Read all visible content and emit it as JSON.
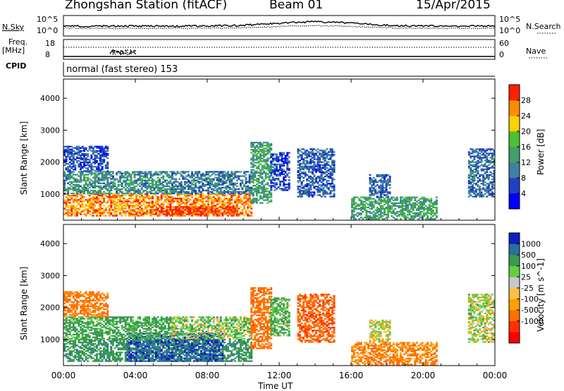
{
  "header": {
    "station": "Zhongshan Station (fitACF)",
    "beam": "Beam 01",
    "date": "15/Apr/2015"
  },
  "nsky_panel": {
    "left_label": "N.Sky",
    "right_label": "N.Search",
    "tick_top": "10^5",
    "tick_bottom": "10^0",
    "right_tick_top": "10^5",
    "right_tick_bottom": "10^0"
  },
  "freq_panel": {
    "left_label_line1": "Freq.",
    "left_label_line2": "[MHz]",
    "left_tick_top": "18",
    "left_tick_bottom": "8",
    "right_label": "Nave",
    "right_tick_top": "60",
    "right_tick_bottom": "0"
  },
  "cpid": {
    "label": "CPID",
    "text": "normal (fast stereo) 153"
  },
  "axes": {
    "ylabel": "Slant Range [km]",
    "xlabel": "Time UT",
    "yticks": [
      "4000",
      "3000",
      "2000",
      "1000"
    ],
    "xticks": [
      "00:00",
      "04:00",
      "08:00",
      "12:00",
      "16:00",
      "20:00",
      "00:00"
    ]
  },
  "chart_data": [
    {
      "type": "heatmap",
      "name": "power",
      "x": "time UT (hours, 0-24)",
      "y": "slant range (km)",
      "ylim": [
        180,
        4600
      ],
      "xlim": [
        0,
        24
      ],
      "colorbar": {
        "label": "Power [dB]",
        "ticks": [
          "28",
          "24",
          "20",
          "16",
          "12",
          "8",
          "4"
        ],
        "range": [
          0,
          32
        ],
        "colors": [
          "#0000ff",
          "#2040c0",
          "#3f7fa0",
          "#3fa06a",
          "#4cc030",
          "#ffd000",
          "#ff8c00",
          "#ff2000"
        ]
      },
      "regions": [
        {
          "t0": 0.0,
          "t1": 10.4,
          "r0": 300,
          "r1": 1000,
          "level": 26
        },
        {
          "t0": 4.8,
          "t1": 9.6,
          "r0": 350,
          "r1": 600,
          "level": 30
        },
        {
          "t0": 0.0,
          "t1": 6.0,
          "r0": 1000,
          "r1": 1700,
          "level": 12
        },
        {
          "t0": 6.0,
          "t1": 10.4,
          "r0": 1000,
          "r1": 1700,
          "level": 10
        },
        {
          "t0": 0.0,
          "t1": 2.5,
          "r0": 1700,
          "r1": 2500,
          "level": 7
        },
        {
          "t0": 10.4,
          "t1": 11.5,
          "r0": 700,
          "r1": 2600,
          "level": 14
        },
        {
          "t0": 11.5,
          "t1": 12.5,
          "r0": 1100,
          "r1": 2300,
          "level": 6
        },
        {
          "t0": 13.0,
          "t1": 15.0,
          "r0": 900,
          "r1": 2400,
          "level": 8
        },
        {
          "t0": 16.0,
          "t1": 20.8,
          "r0": 200,
          "r1": 900,
          "level": 14
        },
        {
          "t0": 17.0,
          "t1": 18.2,
          "r0": 900,
          "r1": 1600,
          "level": 8
        },
        {
          "t0": 22.5,
          "t1": 24.0,
          "r0": 900,
          "r1": 2400,
          "level": 9
        }
      ]
    },
    {
      "type": "heatmap",
      "name": "velocity",
      "x": "time UT (hours, 0-24)",
      "y": "slant range (km)",
      "ylim": [
        180,
        4600
      ],
      "xlim": [
        0,
        24
      ],
      "colorbar": {
        "label": "Velocity [m s^-1]",
        "ticks": [
          "1000",
          "500",
          "100",
          "25",
          "-25",
          "-100",
          "-500",
          "-1000"
        ],
        "range": [
          -1200,
          1200
        ],
        "colors": [
          "#ff0000",
          "#ff3000",
          "#ff7000",
          "#ffa000",
          "#ffc040",
          "#c8c8c8",
          "#60d040",
          "#3a9a50",
          "#2a70a0",
          "#1020c0"
        ]
      },
      "regions": [
        {
          "t0": 0.0,
          "t1": 10.4,
          "r0": 300,
          "r1": 1000,
          "level": 350
        },
        {
          "t0": 3.5,
          "t1": 8.8,
          "r0": 300,
          "r1": 1200,
          "level": 900
        },
        {
          "t0": 0.0,
          "t1": 6.0,
          "r0": 1000,
          "r1": 1700,
          "level": 200
        },
        {
          "t0": 6.0,
          "t1": 10.4,
          "r0": 1000,
          "r1": 1700,
          "level": 60
        },
        {
          "t0": 0.0,
          "t1": 2.5,
          "r0": 1700,
          "r1": 2500,
          "level": -200
        },
        {
          "t0": 10.4,
          "t1": 11.5,
          "r0": 700,
          "r1": 2600,
          "level": -300
        },
        {
          "t0": 11.5,
          "t1": 12.5,
          "r0": 1100,
          "r1": 2300,
          "level": 120
        },
        {
          "t0": 13.0,
          "t1": 15.0,
          "r0": 900,
          "r1": 2400,
          "level": -400
        },
        {
          "t0": 16.0,
          "t1": 20.8,
          "r0": 200,
          "r1": 900,
          "level": -150
        },
        {
          "t0": 17.0,
          "t1": 18.2,
          "r0": 900,
          "r1": 1600,
          "level": 0
        },
        {
          "t0": 22.5,
          "t1": 24.0,
          "r0": 900,
          "r1": 2400,
          "level": 30
        }
      ]
    }
  ]
}
